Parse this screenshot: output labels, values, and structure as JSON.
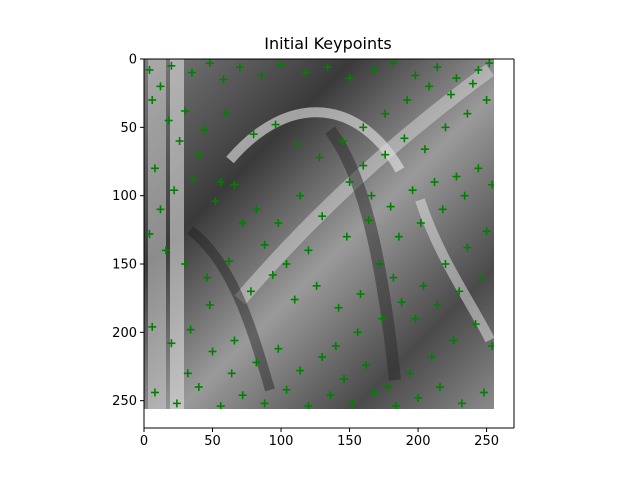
{
  "chart_data": {
    "type": "scatter",
    "title": "Initial Keypoints",
    "xlabel": "",
    "ylabel": "",
    "xlim": [
      0,
      270
    ],
    "ylim": [
      270,
      0
    ],
    "y_axis_inverted": true,
    "grid": false,
    "image_extent": [
      0,
      256,
      256,
      0
    ],
    "x_ticks": [
      0,
      50,
      100,
      150,
      200,
      250
    ],
    "y_ticks": [
      0,
      50,
      100,
      150,
      200,
      250
    ],
    "x_tick_labels": [
      "0",
      "50",
      "100",
      "150",
      "200",
      "250"
    ],
    "y_tick_labels": [
      "0",
      "50",
      "100",
      "150",
      "200",
      "250"
    ],
    "marker": "+",
    "marker_color": "#008000",
    "background_image": "grayscale edge-filtered image",
    "series": [
      {
        "name": "",
        "points": [
          [
            4,
            8
          ],
          [
            12,
            20
          ],
          [
            20,
            5
          ],
          [
            35,
            10
          ],
          [
            48,
            3
          ],
          [
            58,
            15
          ],
          [
            70,
            6
          ],
          [
            86,
            12
          ],
          [
            100,
            4
          ],
          [
            118,
            10
          ],
          [
            134,
            6
          ],
          [
            150,
            14
          ],
          [
            168,
            8
          ],
          [
            182,
            3
          ],
          [
            198,
            12
          ],
          [
            214,
            6
          ],
          [
            228,
            14
          ],
          [
            244,
            8
          ],
          [
            252,
            3
          ],
          [
            6,
            30
          ],
          [
            18,
            45
          ],
          [
            30,
            38
          ],
          [
            44,
            52
          ],
          [
            60,
            40
          ],
          [
            80,
            55
          ],
          [
            96,
            48
          ],
          [
            112,
            62
          ],
          [
            128,
            72
          ],
          [
            145,
            60
          ],
          [
            160,
            78
          ],
          [
            176,
            70
          ],
          [
            190,
            58
          ],
          [
            205,
            66
          ],
          [
            220,
            50
          ],
          [
            236,
            40
          ],
          [
            250,
            30
          ],
          [
            8,
            80
          ],
          [
            22,
            96
          ],
          [
            36,
            88
          ],
          [
            52,
            104
          ],
          [
            66,
            92
          ],
          [
            82,
            110
          ],
          [
            98,
            120
          ],
          [
            114,
            100
          ],
          [
            130,
            115
          ],
          [
            148,
            130
          ],
          [
            164,
            118
          ],
          [
            180,
            108
          ],
          [
            196,
            96
          ],
          [
            212,
            90
          ],
          [
            228,
            86
          ],
          [
            244,
            80
          ],
          [
            254,
            92
          ],
          [
            4,
            128
          ],
          [
            16,
            140
          ],
          [
            30,
            150
          ],
          [
            46,
            160
          ],
          [
            62,
            148
          ],
          [
            78,
            170
          ],
          [
            94,
            158
          ],
          [
            110,
            176
          ],
          [
            126,
            166
          ],
          [
            142,
            182
          ],
          [
            158,
            172
          ],
          [
            174,
            190
          ],
          [
            188,
            178
          ],
          [
            204,
            166
          ],
          [
            220,
            150
          ],
          [
            236,
            138
          ],
          [
            250,
            126
          ],
          [
            6,
            196
          ],
          [
            20,
            208
          ],
          [
            34,
            198
          ],
          [
            50,
            214
          ],
          [
            66,
            206
          ],
          [
            82,
            222
          ],
          [
            98,
            212
          ],
          [
            114,
            228
          ],
          [
            130,
            218
          ],
          [
            146,
            234
          ],
          [
            162,
            224
          ],
          [
            178,
            240
          ],
          [
            194,
            230
          ],
          [
            210,
            218
          ],
          [
            226,
            206
          ],
          [
            242,
            194
          ],
          [
            254,
            210
          ],
          [
            8,
            244
          ],
          [
            24,
            252
          ],
          [
            40,
            240
          ],
          [
            56,
            254
          ],
          [
            72,
            246
          ],
          [
            88,
            252
          ],
          [
            104,
            242
          ],
          [
            120,
            254
          ],
          [
            136,
            246
          ],
          [
            152,
            252
          ],
          [
            168,
            244
          ],
          [
            184,
            254
          ],
          [
            200,
            248
          ],
          [
            216,
            240
          ],
          [
            232,
            252
          ],
          [
            248,
            244
          ],
          [
            140,
            210
          ],
          [
            156,
            200
          ],
          [
            172,
            150
          ],
          [
            186,
            130
          ],
          [
            202,
            120
          ],
          [
            218,
            110
          ],
          [
            234,
            100
          ],
          [
            120,
            140
          ],
          [
            104,
            150
          ],
          [
            88,
            136
          ],
          [
            72,
            120
          ],
          [
            56,
            90
          ],
          [
            40,
            70
          ],
          [
            26,
            60
          ],
          [
            12,
            110
          ],
          [
            150,
            90
          ],
          [
            166,
            100
          ],
          [
            182,
            160
          ],
          [
            198,
            190
          ],
          [
            214,
            180
          ],
          [
            230,
            170
          ],
          [
            246,
            160
          ],
          [
            64,
            230
          ],
          [
            48,
            180
          ],
          [
            32,
            230
          ],
          [
            160,
            50
          ],
          [
            176,
            40
          ],
          [
            192,
            30
          ],
          [
            208,
            20
          ],
          [
            224,
            26
          ],
          [
            240,
            18
          ]
        ]
      }
    ]
  }
}
